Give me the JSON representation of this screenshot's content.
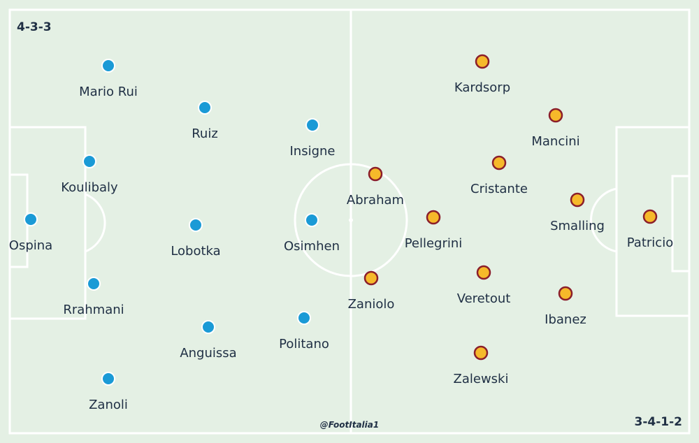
{
  "home": {
    "formation": "4-3-3",
    "dot_color": "#1a9ad6",
    "players": [
      {
        "name": "Ospina"
      },
      {
        "name": "Mario Rui"
      },
      {
        "name": "Koulibaly"
      },
      {
        "name": "Rrahmani"
      },
      {
        "name": "Zanoli"
      },
      {
        "name": "Ruiz"
      },
      {
        "name": "Lobotka"
      },
      {
        "name": "Anguissa"
      },
      {
        "name": "Insigne"
      },
      {
        "name": "Osimhen"
      },
      {
        "name": "Politano"
      }
    ]
  },
  "away": {
    "formation": "3-4-1-2",
    "dot_fill": "#f6b92a",
    "dot_stroke": "#8b1e2a",
    "players": [
      {
        "name": "Patricio"
      },
      {
        "name": "Mancini"
      },
      {
        "name": "Smalling"
      },
      {
        "name": "Ibanez"
      },
      {
        "name": "Kardsorp"
      },
      {
        "name": "Cristante"
      },
      {
        "name": "Veretout"
      },
      {
        "name": "Zalewski"
      },
      {
        "name": "Pellegrini"
      },
      {
        "name": "Abraham"
      },
      {
        "name": "Zaniolo"
      }
    ]
  },
  "credit": "@FootItalia1",
  "colors": {
    "pitch": "#e4f0e4",
    "lines": "#ffffff",
    "text": "#1f2f44"
  }
}
